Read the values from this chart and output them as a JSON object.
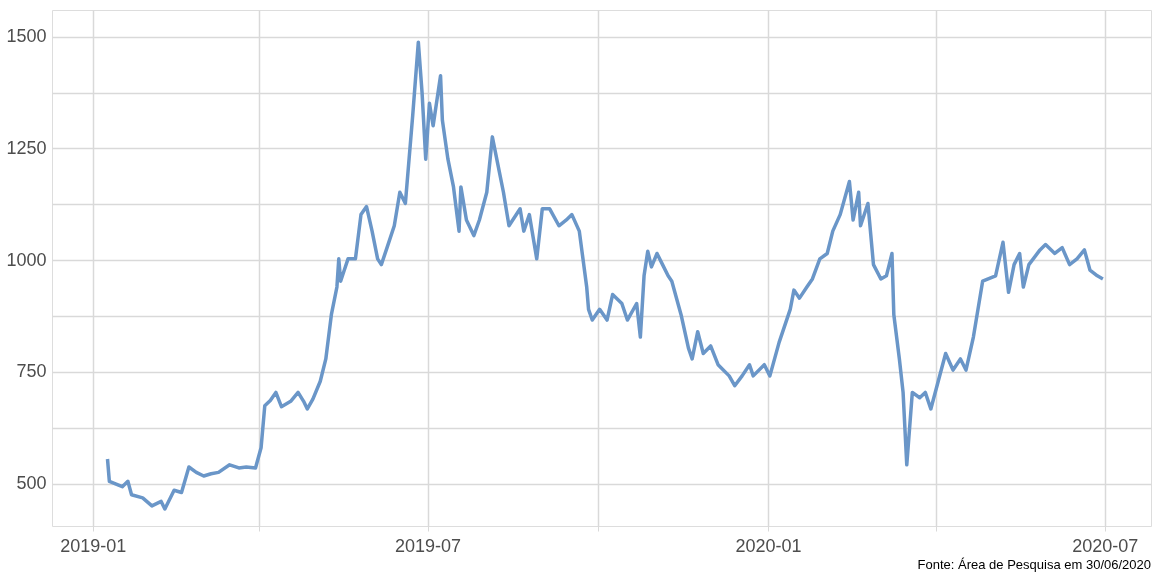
{
  "chart_data": {
    "type": "line",
    "x": [
      "2019-01-09",
      "2019-01-10",
      "2019-01-17",
      "2019-01-20",
      "2019-01-22",
      "2019-01-28",
      "2019-02-02",
      "2019-02-07",
      "2019-02-09",
      "2019-02-14",
      "2019-02-18",
      "2019-02-22",
      "2019-02-26",
      "2019-03-02",
      "2019-03-06",
      "2019-03-10",
      "2019-03-16",
      "2019-03-21",
      "2019-03-25",
      "2019-03-30",
      "2019-04-02",
      "2019-04-04",
      "2019-04-07",
      "2019-04-10",
      "2019-04-13",
      "2019-04-18",
      "2019-04-22",
      "2019-04-25",
      "2019-04-27",
      "2019-04-30",
      "2019-05-04",
      "2019-05-07",
      "2019-05-10",
      "2019-05-13",
      "2019-05-14",
      "2019-05-15",
      "2019-05-17",
      "2019-05-19",
      "2019-05-23",
      "2019-05-26",
      "2019-05-29",
      "2019-06-01",
      "2019-06-04",
      "2019-06-06",
      "2019-06-09",
      "2019-06-13",
      "2019-06-16",
      "2019-06-19",
      "2019-06-23",
      "2019-06-26",
      "2019-06-28",
      "2019-06-30",
      "2019-07-02",
      "2019-07-04",
      "2019-07-08",
      "2019-07-09",
      "2019-07-12",
      "2019-07-15",
      "2019-07-18",
      "2019-07-19",
      "2019-07-22",
      "2019-07-26",
      "2019-07-29",
      "2019-08-02",
      "2019-08-05",
      "2019-08-08",
      "2019-08-11",
      "2019-08-14",
      "2019-08-20",
      "2019-08-22",
      "2019-08-25",
      "2019-08-29",
      "2019-09-01",
      "2019-09-05",
      "2019-09-10",
      "2019-09-14",
      "2019-09-17",
      "2019-09-21",
      "2019-09-25",
      "2019-09-26",
      "2019-09-28",
      "2019-10-02",
      "2019-10-06",
      "2019-10-09",
      "2019-10-14",
      "2019-10-17",
      "2019-10-22",
      "2019-10-24",
      "2019-10-26",
      "2019-10-28",
      "2019-10-30",
      "2019-11-02",
      "2019-11-05",
      "2019-11-08",
      "2019-11-10",
      "2019-11-15",
      "2019-11-19",
      "2019-11-21",
      "2019-11-24",
      "2019-11-27",
      "2019-12-01",
      "2019-12-05",
      "2019-12-11",
      "2019-12-14",
      "2019-12-18",
      "2019-12-22",
      "2019-12-24",
      "2019-12-30",
      "2020-01-02",
      "2020-01-07",
      "2020-01-13",
      "2020-01-15",
      "2020-01-18",
      "2020-01-22",
      "2020-01-25",
      "2020-01-29",
      "2020-02-02",
      "2020-02-05",
      "2020-02-09",
      "2020-02-14",
      "2020-02-16",
      "2020-02-19",
      "2020-02-20",
      "2020-02-24",
      "2020-02-27",
      "2020-03-02",
      "2020-03-05",
      "2020-03-08",
      "2020-03-09",
      "2020-03-12",
      "2020-03-14",
      "2020-03-16",
      "2020-03-19",
      "2020-03-23",
      "2020-03-26",
      "2020-03-29",
      "2020-04-02",
      "2020-04-06",
      "2020-04-10",
      "2020-04-14",
      "2020-04-17",
      "2020-04-21",
      "2020-04-26",
      "2020-05-03",
      "2020-05-07",
      "2020-05-10",
      "2020-05-13",
      "2020-05-16",
      "2020-05-18",
      "2020-05-21",
      "2020-05-27",
      "2020-05-30",
      "2020-06-04",
      "2020-06-08",
      "2020-06-12",
      "2020-06-16",
      "2020-06-20",
      "2020-06-23",
      "2020-06-27",
      "2020-06-30"
    ],
    "series": [
      {
        "color": "#6a96c8",
        "values": [
          555,
          505,
          493,
          505,
          475,
          468,
          450,
          460,
          443,
          485,
          480,
          537,
          525,
          517,
          522,
          525,
          542,
          535,
          537,
          535,
          580,
          674,
          686,
          704,
          672,
          684,
          704,
          684,
          667,
          689,
          729,
          779,
          878,
          940,
          1003,
          953,
          978,
          1003,
          1003,
          1102,
          1120,
          1065,
          1003,
          990,
          1027,
          1077,
          1152,
          1127,
          1326,
          1488,
          1376,
          1226,
          1351,
          1301,
          1413,
          1313,
          1226,
          1164,
          1065,
          1164,
          1090,
          1055,
          1090,
          1152,
          1276,
          1214,
          1152,
          1077,
          1115,
          1065,
          1102,
          1003,
          1115,
          1115,
          1077,
          1090,
          1102,
          1065,
          940,
          890,
          866,
          890,
          866,
          923,
          903,
          866,
          903,
          828,
          965,
          1020,
          985,
          1015,
          990,
          965,
          953,
          878,
          803,
          779,
          840,
          791,
          808,
          766,
          741,
          719,
          741,
          766,
          741,
          766,
          741,
          816,
          890,
          933,
          915,
          940,
          958,
          1003,
          1015,
          1065,
          1102,
          1176,
          1090,
          1152,
          1077,
          1127,
          990,
          958,
          965,
          1015,
          878,
          779,
          704,
          542,
          704,
          692,
          704,
          667,
          729,
          791,
          754,
          779,
          754,
          828,
          953,
          965,
          1040,
          928,
          990,
          1015,
          940,
          990,
          1023,
          1035,
          1015,
          1028,
          990,
          1003,
          1023,
          978,
          965,
          958
        ]
      }
    ],
    "xlim": [
      "2018-12-10",
      "2020-07-26"
    ],
    "xticks": [
      "2019-01",
      {
        "value": "2019-04",
        "label": null
      },
      "2019-07",
      {
        "value": "2019-10",
        "label": null
      },
      "2020-01",
      {
        "value": "2020-04",
        "label": null
      },
      "2020-07"
    ],
    "ylim": [
      405,
      1560
    ],
    "yticks": [
      500,
      {
        "value": 625,
        "label": null
      },
      750,
      {
        "value": 875,
        "label": null
      },
      1000,
      {
        "value": 1125,
        "label": null
      },
      1250,
      {
        "value": 1375,
        "label": null
      },
      1500
    ],
    "grid": true,
    "marker": "none",
    "line_style": "solid",
    "annotations": [
      "Fonte: Área de Pesquisa em 30/06/2020"
    ]
  }
}
